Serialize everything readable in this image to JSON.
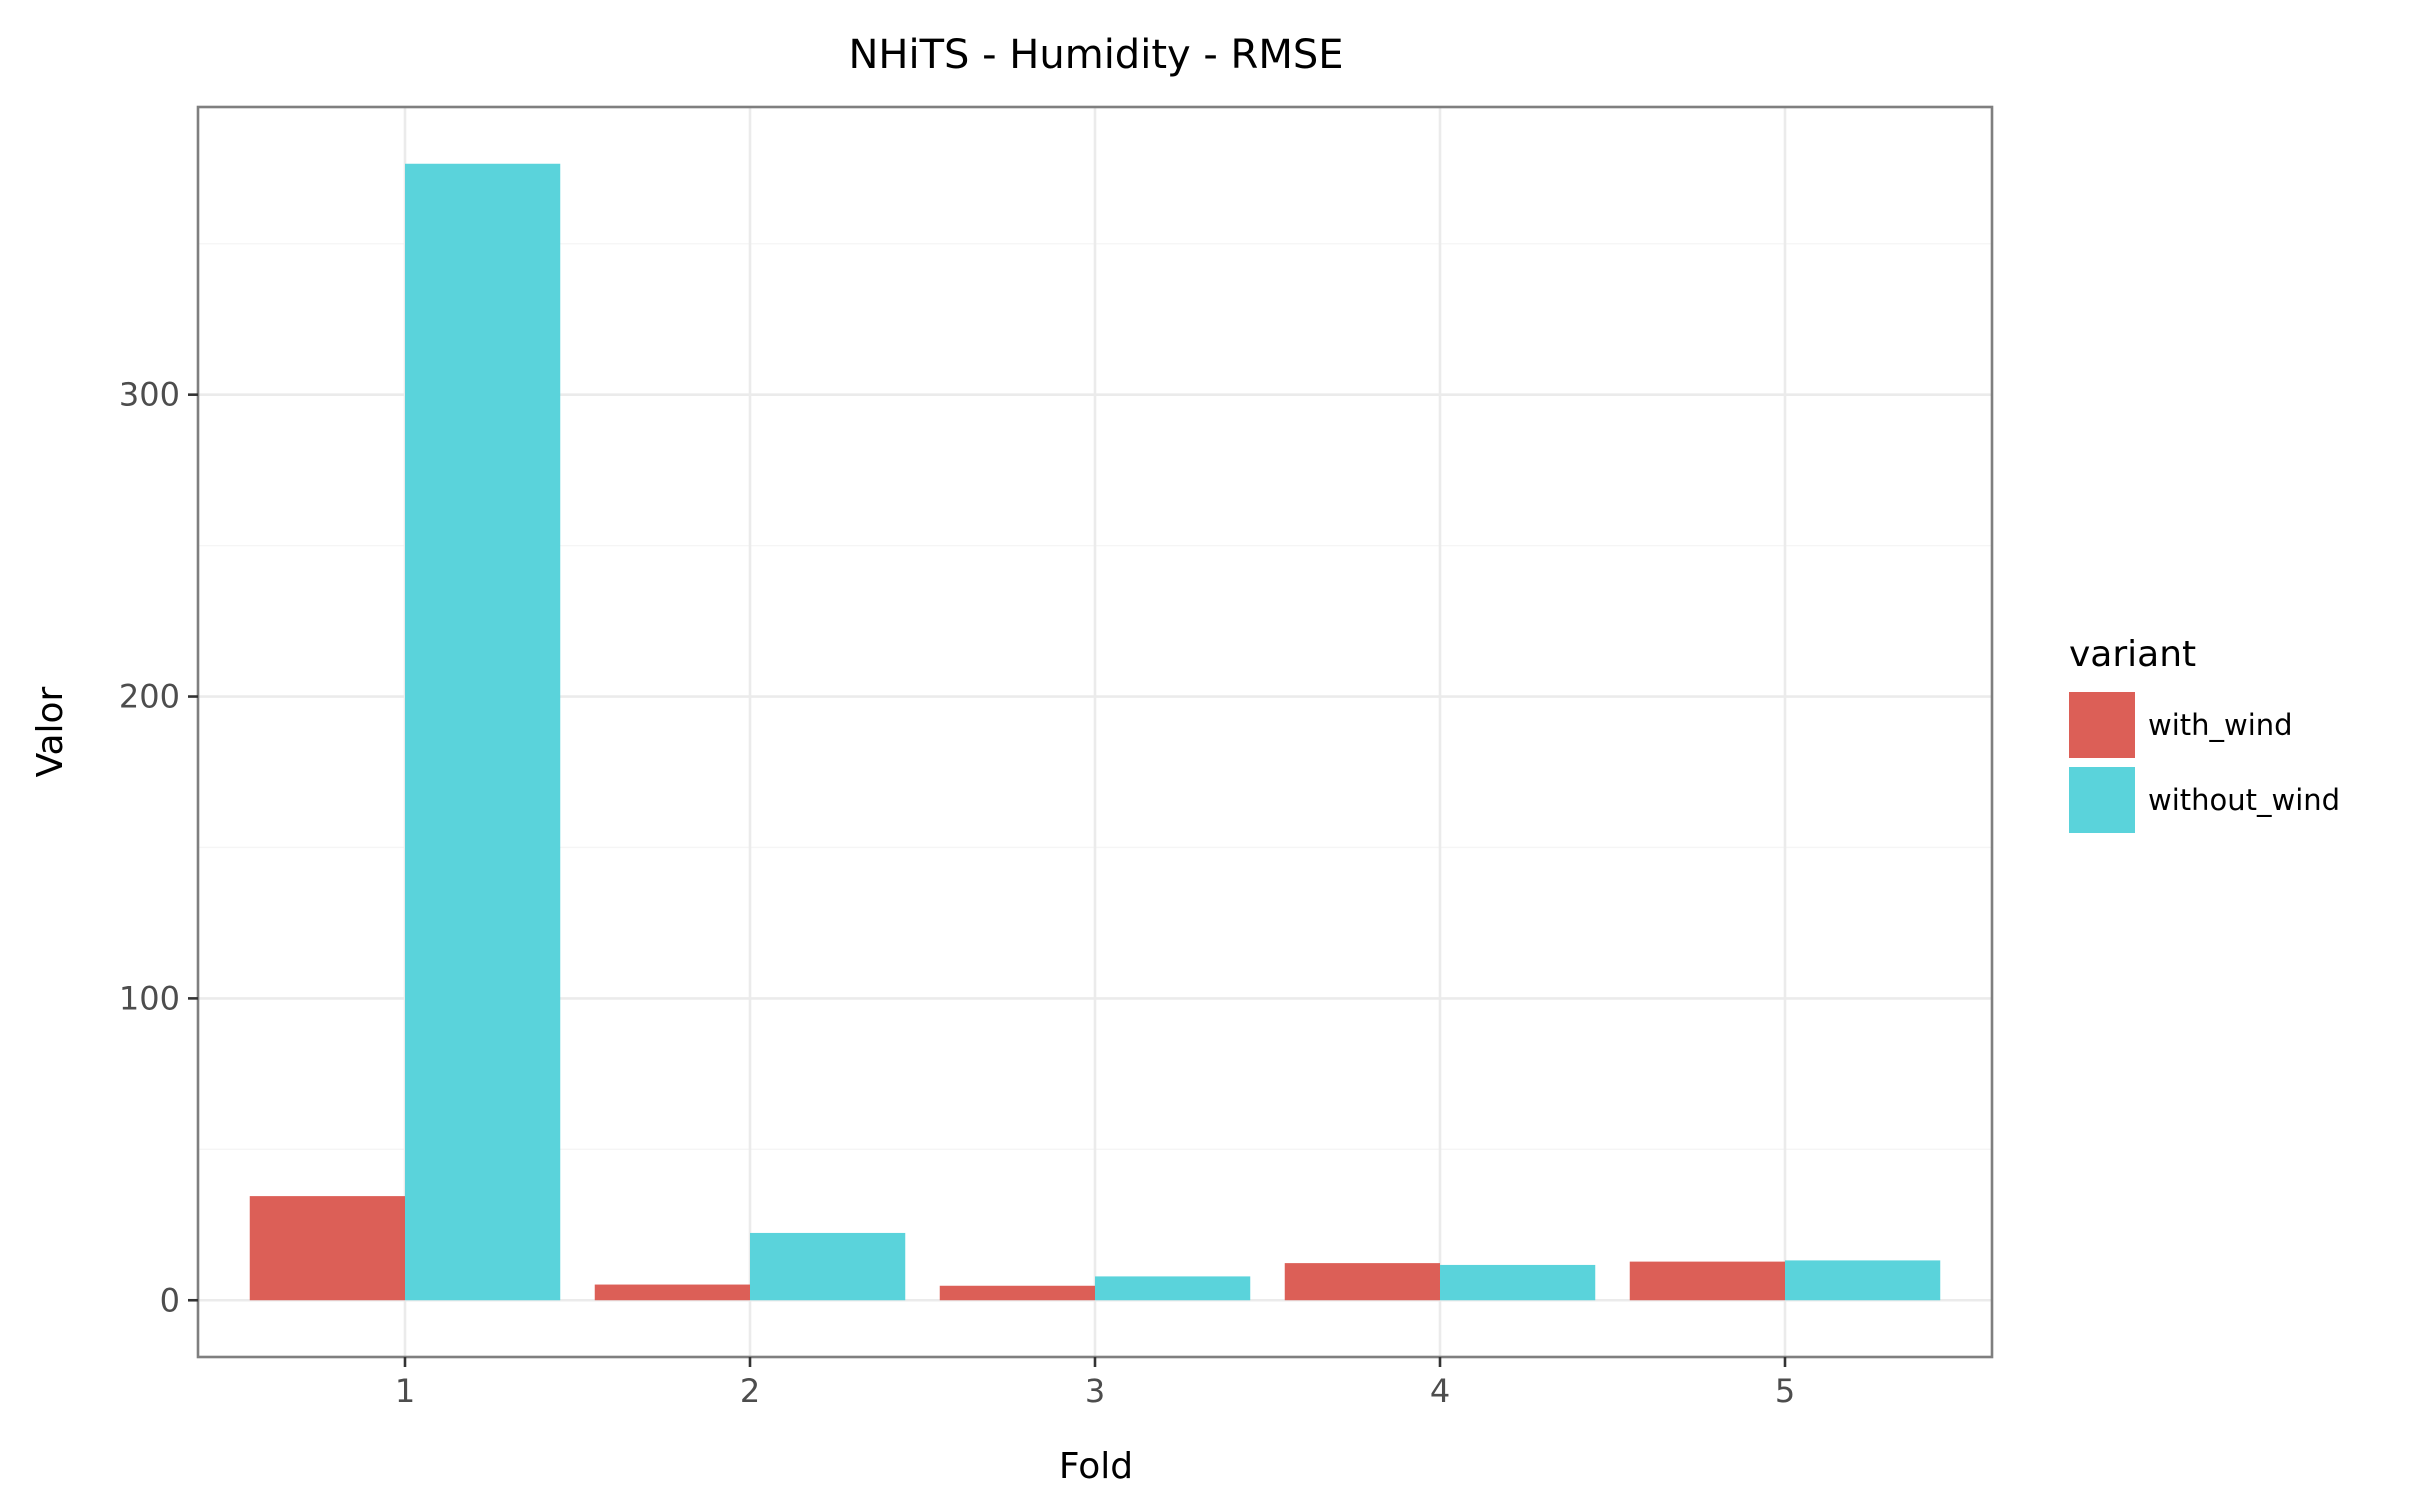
{
  "chart_data": {
    "type": "bar",
    "title": "NHiTS - Humidity - RMSE",
    "xlabel": "Fold",
    "ylabel": "Valor",
    "categories": [
      "1",
      "2",
      "3",
      "4",
      "5"
    ],
    "series": [
      {
        "name": "with_wind",
        "color": "#dc5f57",
        "values": [
          34.5,
          5.2,
          4.8,
          12.3,
          12.8
        ]
      },
      {
        "name": "without_wind",
        "color": "#5ad3db",
        "values": [
          376.5,
          22.3,
          7.9,
          11.7,
          13.2
        ]
      }
    ],
    "ylim": [
      -18.8,
      395.3
    ],
    "yticks": [
      0,
      100,
      200,
      300
    ],
    "ytick_labels": [
      "0",
      "100",
      "200",
      "300"
    ],
    "grid": true,
    "legend": {
      "title": "variant",
      "position": "right"
    }
  }
}
